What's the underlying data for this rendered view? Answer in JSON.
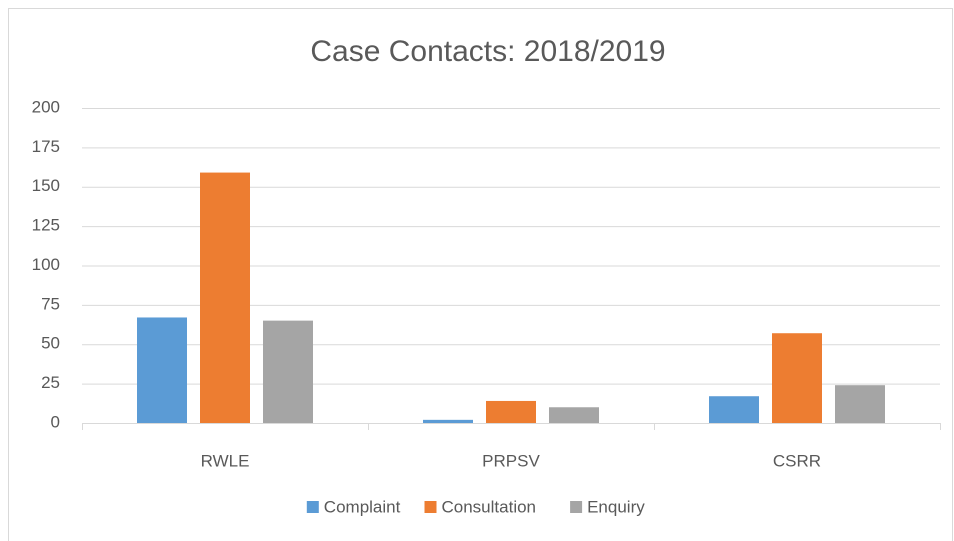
{
  "chart_data": {
    "type": "bar",
    "title": "Case Contacts: 2018/2019",
    "categories": [
      "RWLE",
      "PRPSV",
      "CSRR"
    ],
    "series": [
      {
        "name": "Complaint",
        "color": "#5b9bd5",
        "values": [
          67,
          2,
          17
        ]
      },
      {
        "name": "Consultation",
        "color": "#ed7d31",
        "values": [
          159,
          14,
          57
        ]
      },
      {
        "name": "Enquiry",
        "color": "#a5a5a5",
        "values": [
          65,
          10,
          24
        ]
      }
    ],
    "ylim": [
      0,
      200
    ],
    "yticks": [
      0,
      25,
      50,
      75,
      100,
      125,
      150,
      175,
      200
    ],
    "grid": true,
    "legend": "bottom"
  }
}
